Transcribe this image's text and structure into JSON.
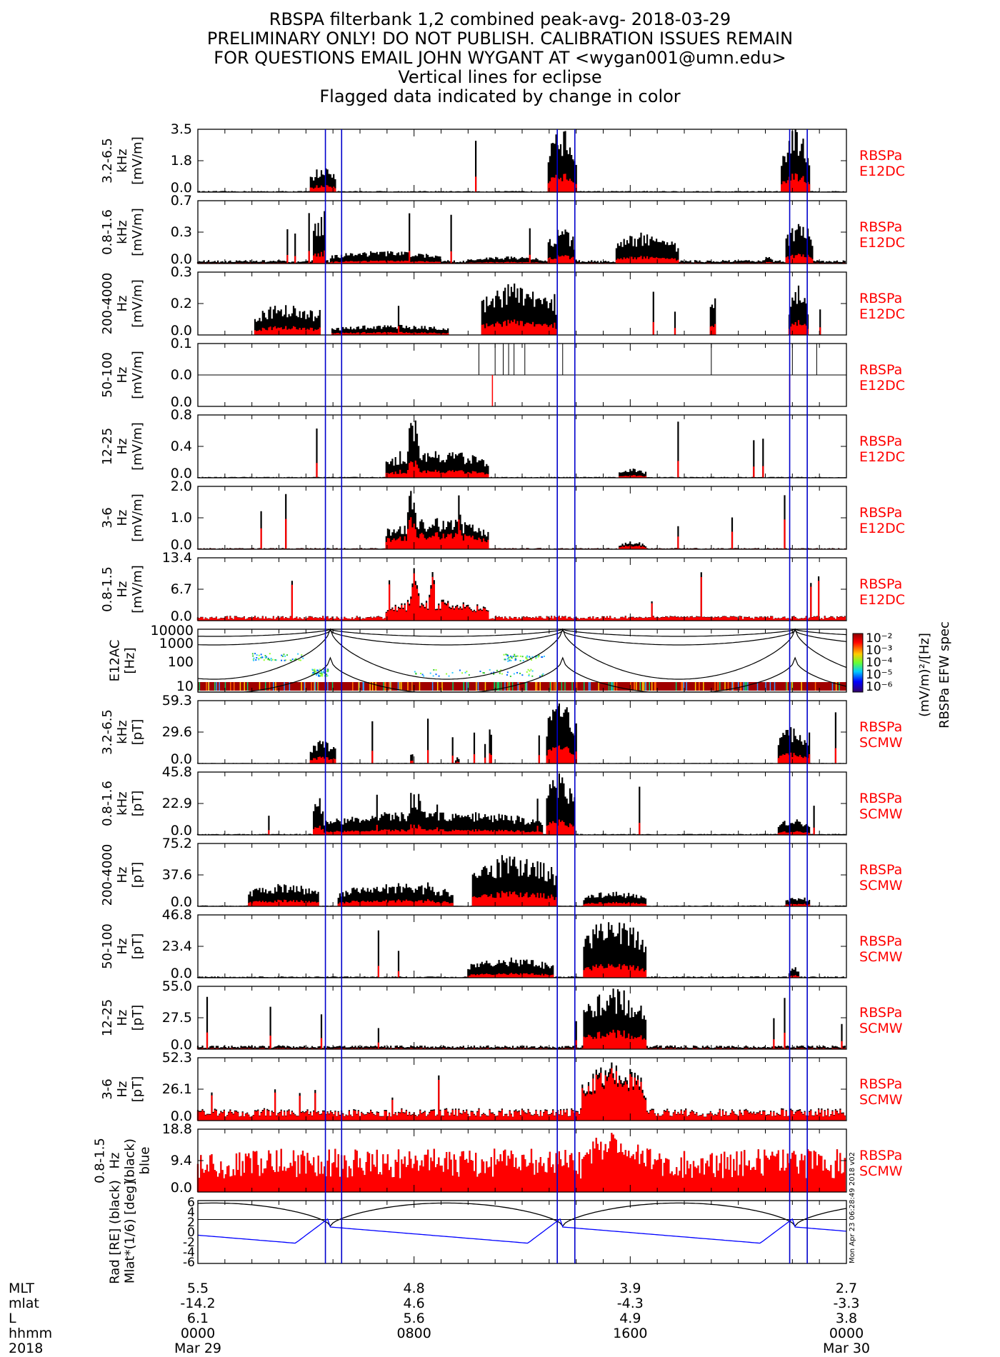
{
  "header": {
    "lines": [
      "RBSPA filterbank 1,2 combined peak-avg- 2018-03-29",
      "PRELIMINARY ONLY! DO NOT PUBLISH. CALIBRATION ISSUES REMAIN",
      "FOR QUESTIONS EMAIL JOHN WYGANT AT <wygan001@umn.edu>",
      "Vertical lines for eclipse",
      "Flagged data indicated by change in color"
    ]
  },
  "colors": {
    "peak": "#000000",
    "avg": "#ff0000",
    "eclipse": "#0000cc",
    "mlat": "#0000ff"
  },
  "chart_data": {
    "type": "line",
    "x_range_hours": [
      0,
      24
    ],
    "eclipse_hours": [
      [
        4.72,
        5.32
      ],
      [
        13.3,
        13.95
      ],
      [
        21.9,
        22.55
      ]
    ],
    "panels": [
      {
        "label": [
          "3.2-6.5",
          "kHz",
          "[mV/m]"
        ],
        "ticks": [
          "3.5",
          "1.8",
          "0.0"
        ],
        "ymax": 3.5,
        "tag": [
          "RBSPa",
          "E12DC"
        ],
        "base": 0.05,
        "bursts": [
          [
            4.15,
            5.15,
            1.4
          ],
          [
            13.0,
            14.05,
            3.5
          ],
          [
            21.6,
            22.7,
            3.5
          ]
        ],
        "red": 0.3
      },
      {
        "label": [
          "0.8-1.6",
          "kHz",
          "[mV/m]"
        ],
        "ticks": [
          "0.7",
          "0.3",
          "0.0"
        ],
        "ymax": 0.7,
        "tag": [
          "RBSPa",
          "E12DC"
        ],
        "base": 0.03,
        "bursts": [
          [
            4.3,
            4.75,
            0.55
          ],
          [
            4.9,
            9.0,
            0.14
          ],
          [
            10.0,
            12.8,
            0.08
          ],
          [
            13.0,
            14.0,
            0.4
          ],
          [
            15.5,
            17.8,
            0.35
          ],
          [
            21.0,
            21.3,
            0.1
          ],
          [
            21.8,
            22.8,
            0.45
          ]
        ],
        "red": 0.25
      },
      {
        "label": [
          "200-4000",
          "Hz",
          "[mV/m]"
        ],
        "ticks": [
          "0.3",
          "0.2",
          "0.0"
        ],
        "ymax": 0.3,
        "tag": [
          "RBSPa",
          "E12DC"
        ],
        "base": 0.0,
        "bursts": [
          [
            2.1,
            4.5,
            0.15
          ],
          [
            5.0,
            9.3,
            0.05
          ],
          [
            10.5,
            13.3,
            0.25
          ],
          [
            19.0,
            19.2,
            0.22
          ],
          [
            21.9,
            22.6,
            0.25
          ]
        ],
        "red": 0.3
      },
      {
        "label": [
          "50-100",
          "Hz",
          "[mV/m]"
        ],
        "ticks": [
          "0.1",
          "0.0",
          "0.0"
        ],
        "ymax": 0.1,
        "tag": [
          "RBSPa",
          "E12DC"
        ],
        "base": 0.0,
        "bursts": [],
        "red": 0.0
      },
      {
        "label": [
          "12-25",
          "Hz",
          "[mV/m]"
        ],
        "ticks": [
          "0.8",
          "0.4",
          "0.0"
        ],
        "ymax": 0.8,
        "tag": [
          "RBSPa",
          "E12DC"
        ],
        "base": 0.01,
        "bursts": [
          [
            7.0,
            10.8,
            0.35
          ],
          [
            7.8,
            8.2,
            0.8
          ],
          [
            15.6,
            16.6,
            0.12
          ]
        ],
        "red": 0.3
      },
      {
        "label": [
          "3-6",
          "Hz",
          "[mV/m]"
        ],
        "ticks": [
          "2.0",
          "1.0",
          "0.0"
        ],
        "ymax": 2.0,
        "tag": [
          "RBSPa",
          "E12DC"
        ],
        "base": 0.03,
        "bursts": [
          [
            7.0,
            10.8,
            1.0
          ],
          [
            7.8,
            8.1,
            2.0
          ],
          [
            9.6,
            9.8,
            1.9
          ],
          [
            15.6,
            16.6,
            0.25
          ]
        ],
        "red": 0.55
      },
      {
        "label": [
          "0.8-1.5",
          "Hz",
          "[mV/m]"
        ],
        "ticks": [
          "13.4",
          "6.7",
          "0.0"
        ],
        "ymax": 13.4,
        "tag": [
          "RBSPa",
          "E12DC"
        ],
        "base": 0.8,
        "bursts": [
          [
            7.0,
            10.8,
            4.5
          ],
          [
            7.9,
            8.2,
            13.0
          ],
          [
            8.6,
            8.8,
            11.0
          ],
          [
            15.5,
            20.0,
            1.0
          ]
        ],
        "red": 0.9
      },
      {
        "kind": "spec",
        "label": [
          "E12AC",
          "[Hz]"
        ],
        "ticks": [
          "10000",
          "1000",
          "100",
          "10"
        ]
      },
      {
        "label": [
          "3.2-6.5",
          "kHz",
          "[pT]"
        ],
        "ticks": [
          "59.3",
          "29.6",
          "0.0"
        ],
        "ymax": 59.3,
        "tag": [
          "RBSPa",
          "SCMW"
        ],
        "base": 0.4,
        "bursts": [
          [
            4.15,
            5.15,
            22
          ],
          [
            7.9,
            8.0,
            12
          ],
          [
            9.55,
            9.7,
            6
          ],
          [
            10.8,
            10.9,
            50
          ],
          [
            12.9,
            14.05,
            57
          ],
          [
            21.5,
            22.7,
            35
          ]
        ],
        "red": 0.3
      },
      {
        "label": [
          "0.8-1.6",
          "kHz",
          "[pT]"
        ],
        "ticks": [
          "45.8",
          "22.9",
          "0.0"
        ],
        "ymax": 45.8,
        "tag": [
          "RBSPa",
          "SCMW"
        ],
        "base": 0.6,
        "bursts": [
          [
            4.3,
            4.7,
            30
          ],
          [
            4.7,
            12.8,
            18
          ],
          [
            7.8,
            8.3,
            35
          ],
          [
            12.9,
            14.0,
            45
          ],
          [
            21.5,
            22.7,
            12
          ]
        ],
        "red": 0.25
      },
      {
        "label": [
          "200-4000",
          "Hz",
          "[pT]"
        ],
        "ticks": [
          "75.2",
          "37.6",
          "0.0"
        ],
        "ymax": 75.2,
        "tag": [
          "RBSPa",
          "SCMW"
        ],
        "base": 0.8,
        "bursts": [
          [
            1.9,
            4.5,
            28
          ],
          [
            5.2,
            9.5,
            28
          ],
          [
            10.2,
            13.3,
            65
          ],
          [
            14.3,
            16.6,
            18
          ],
          [
            21.8,
            22.7,
            12
          ]
        ],
        "red": 0.3
      },
      {
        "label": [
          "50-100",
          "Hz",
          "[pT]"
        ],
        "ticks": [
          "46.8",
          "23.4",
          "0.0"
        ],
        "ymax": 46.8,
        "tag": [
          "RBSPa",
          "SCMW"
        ],
        "base": 0.8,
        "bursts": [
          [
            10.0,
            13.2,
            15
          ],
          [
            14.3,
            16.6,
            46
          ],
          [
            21.9,
            22.3,
            8
          ]
        ],
        "red": 0.25
      },
      {
        "label": [
          "12-25",
          "Hz",
          "[pT]"
        ],
        "ticks": [
          "55.0",
          "27.5",
          "0.0"
        ],
        "ymax": 55.0,
        "tag": [
          "RBSPa",
          "SCMW"
        ],
        "base": 2.5,
        "bursts": [
          [
            14.3,
            16.6,
            54
          ]
        ],
        "red": 0.32
      },
      {
        "label": [
          "3-6",
          "Hz",
          "[pT]"
        ],
        "ticks": [
          "52.3",
          "26.1",
          "0.0"
        ],
        "ymax": 52.3,
        "tag": [
          "RBSPa",
          "SCMW"
        ],
        "base": 8,
        "bursts": [
          [
            14.3,
            16.6,
            50
          ]
        ],
        "red": 0.9
      },
      {
        "label": [
          "0.8-1.5",
          "Hz",
          "(black)",
          "blue"
        ],
        "ticks": [
          "18.8",
          "9.4",
          "0.0"
        ],
        "ymax": 18.8,
        "tag": [
          "RBSPa",
          "SCMW"
        ],
        "base": 10,
        "bursts": [
          [
            14.3,
            16.6,
            18.5
          ]
        ],
        "red": 1.0
      },
      {
        "kind": "orbit",
        "label": [
          "Rad [RE] (black)",
          "Mlat*(1/6) [deg]"
        ],
        "ticks": [
          "6",
          "4",
          "2",
          "0",
          "-2",
          "-4",
          "-6"
        ],
        "stamp": "Mon Apr 23 06:28:49 2018 v02"
      }
    ],
    "spec_colorbar": {
      "labels": [
        "10⁻²",
        "10⁻³",
        "10⁻⁴",
        "10⁻⁵",
        "10⁻⁶"
      ],
      "title": "(mV/m)²/[Hz]",
      "side": "RBSPa EFW spec"
    },
    "x_axis": {
      "row_labels": [
        "MLT",
        "mlat",
        "L",
        "hhmm",
        "2018"
      ],
      "ticks": [
        {
          "hour": 0,
          "values": [
            "5.5",
            "-14.2",
            "6.1",
            "0000",
            "Mar 29"
          ]
        },
        {
          "hour": 8,
          "values": [
            "4.8",
            "4.6",
            "5.6",
            "0800",
            ""
          ]
        },
        {
          "hour": 16,
          "values": [
            "3.9",
            "-4.3",
            "4.9",
            "1600",
            ""
          ]
        },
        {
          "hour": 24,
          "values": [
            "2.7",
            "-3.3",
            "3.8",
            "0000",
            "Mar 30"
          ]
        }
      ]
    }
  }
}
